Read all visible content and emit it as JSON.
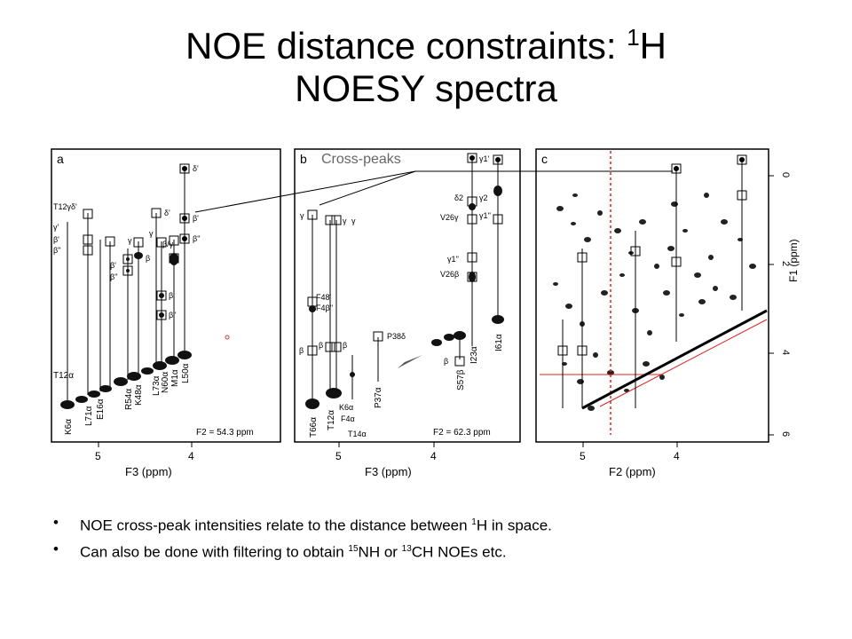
{
  "slide": {
    "title_line1_a": "NOE distance constraints: ",
    "title_sup": "1",
    "title_line1_b": "H",
    "title_line2": "NOESY spectra"
  },
  "figure": {
    "annotation": "Cross-peaks",
    "panels": [
      {
        "letter": "a",
        "footer": "F2 = 54.3 ppm",
        "xlabel": "F3 (ppm)",
        "ticks": [
          "5",
          "4"
        ],
        "left_labels": [
          "T12γδ'",
          "γ'",
          "β'",
          "β''"
        ],
        "peak_labels": [
          "δ'",
          "δ'",
          "β'",
          "β''",
          "γ",
          "β",
          "β'",
          "β''",
          "γ",
          "β/γ",
          "β'",
          "β''",
          "T12α"
        ],
        "residue_labels": [
          "K6α",
          "L71α",
          "E16α",
          "R54α",
          "K48α",
          "L73α",
          "N60α",
          "M1α",
          "L50α"
        ]
      },
      {
        "letter": "b",
        "footer": "F2 = 62.3 ppm",
        "xlabel": "F3 (ppm)",
        "ticks": [
          "5",
          "4"
        ],
        "peak_labels": [
          "γ",
          "γ",
          "γ",
          "γ1'",
          "δ2",
          "γ2",
          "V26γ",
          "γ1''",
          "γ1''",
          "V26β",
          "F48'",
          "F4β''",
          "β",
          "β",
          "β",
          "β",
          "P38δ",
          "K6α",
          "F4α",
          "T14α"
        ],
        "residue_labels": [
          "T66α",
          "T12α",
          "P37α",
          "S57β",
          "I23α",
          "I61α"
        ]
      },
      {
        "letter": "c",
        "xlabel": "F2 (ppm)",
        "ticks": [
          "5",
          "4"
        ],
        "ylabel": "F1 (ppm)",
        "yticks": [
          "0",
          "2",
          "4",
          "6"
        ]
      }
    ]
  },
  "bullets": [
    {
      "before": "NOE cross-peak intensities relate to the distance between ",
      "sup": "1",
      "after": "H in space.",
      "sup2": "",
      "after2": ""
    },
    {
      "before": "Can also be done with filtering to obtain ",
      "sup": "15",
      "after": "NH or ",
      "sup2": "13",
      "after2": "CH NOEs etc."
    }
  ]
}
